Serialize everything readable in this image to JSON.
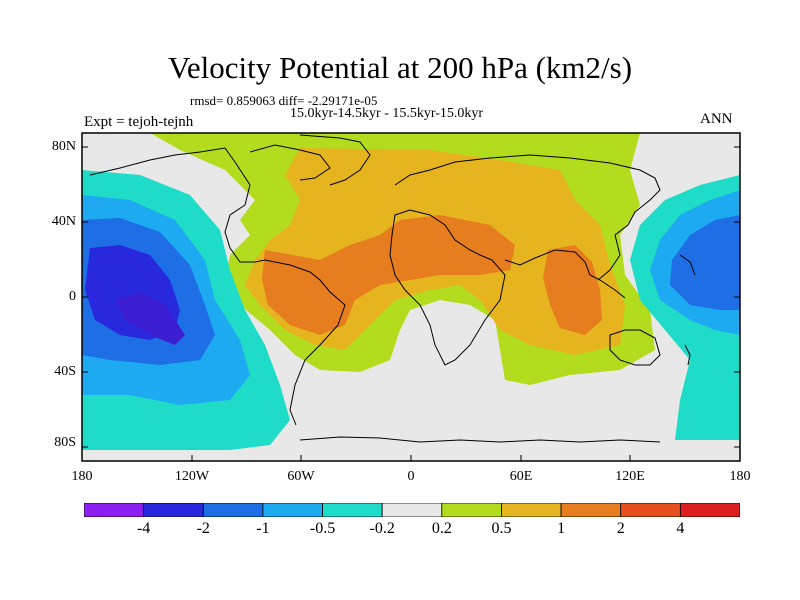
{
  "title": "Velocity Potential at 200 hPa (km2/s)",
  "stats": "rmsd= 0.859063 diff= -2.29171e-05",
  "period": "15.0kyr-14.5kyr - 15.5kyr-15.0kyr",
  "experiment": "Expt = tejoh-tejnh",
  "season": "ANN",
  "lat_ticks": [
    "80N",
    "40N",
    "0",
    "40S",
    "80S"
  ],
  "lon_ticks": [
    "180",
    "120W",
    "60W",
    "0",
    "60E",
    "120E",
    "180"
  ],
  "colorbar": {
    "colors": [
      "#8d1ef0",
      "#2828dc",
      "#1e6ee6",
      "#1eaaf0",
      "#1edcc8",
      "#e8e8e8",
      "#b4dc1e",
      "#e6b41e",
      "#e67d1e",
      "#e6501e",
      "#dc1e1e"
    ],
    "labels": [
      "-4",
      "-2",
      "-1",
      "-0.5",
      "-0.2",
      "0.2",
      "0.5",
      "1",
      "2",
      "4"
    ]
  },
  "map_colors": {
    "neutral": "#e8e8e8",
    "weak_pos": "#b4dc1e",
    "mid_pos": "#e6b41e",
    "strong_pos": "#e67d1e",
    "weak_neg": "#1edcc8",
    "mid_neg": "#1eaaf0",
    "strong_neg": "#1e6ee6",
    "very_strong_neg": "#2828dc",
    "extreme_neg": "#3c1ed2",
    "coast": "#000000"
  }
}
